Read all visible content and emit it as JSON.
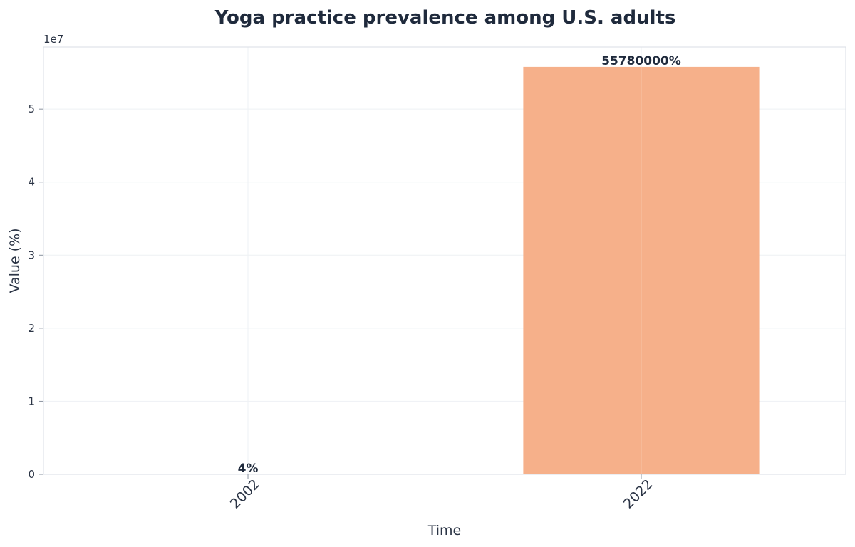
{
  "chart_data": {
    "type": "bar",
    "title": "Yoga practice prevalence among U.S. adults",
    "xlabel": "Time",
    "ylabel": "Value (%)",
    "categories": [
      "2002",
      "2022"
    ],
    "values": [
      4,
      55780000
    ],
    "data_labels": [
      "4%",
      "55780000%"
    ],
    "ylim": [
      0,
      58500000
    ],
    "y_scale_label": "1e7",
    "y_ticks": [
      0,
      10000000,
      20000000,
      30000000,
      40000000,
      50000000
    ],
    "y_tick_labels": [
      "0",
      "1",
      "2",
      "3",
      "4",
      "5"
    ],
    "grid": true,
    "bar_color": "#f6b08a",
    "text_color": "#1f2a3c"
  }
}
